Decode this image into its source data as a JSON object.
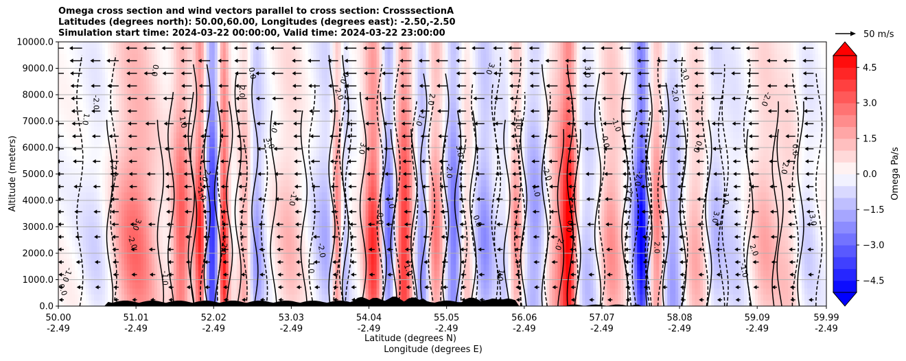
{
  "chart_data": {
    "type": "heatmap",
    "title_lines": [
      "Omega cross section and wind vectors parallel to cross section: CrosssectionA",
      "Latitudes (degrees north): 50.00,60.00, Longitudes (degrees east): -2.50,-2.50",
      "Simulation start time: 2024-03-22 00:00:00, Valid time: 2024-03-22 23:00:00"
    ],
    "ylabel": "Altitude (meters)",
    "xlabel_lat": "Latitude (degrees N)",
    "xlabel_lon": "Longitude (degrees E)",
    "ylim": [
      0,
      10000
    ],
    "xlim": [
      50.0,
      59.99
    ],
    "y_ticks": [
      "0.0",
      "1000.0",
      "2000.0",
      "3000.0",
      "4000.0",
      "5000.0",
      "6000.0",
      "7000.0",
      "8000.0",
      "9000.0",
      "10000.0"
    ],
    "y_tick_values": [
      0,
      1000,
      2000,
      3000,
      4000,
      5000,
      6000,
      7000,
      8000,
      9000,
      10000
    ],
    "x_ticks": [
      {
        "lat": "50.00",
        "lon": "-2.49",
        "v": 50.0
      },
      {
        "lat": "51.01",
        "lon": "-2.49",
        "v": 51.01
      },
      {
        "lat": "52.02",
        "lon": "-2.49",
        "v": 52.02
      },
      {
        "lat": "53.03",
        "lon": "-2.49",
        "v": 53.03
      },
      {
        "lat": "54.04",
        "lon": "-2.49",
        "v": 54.04
      },
      {
        "lat": "55.05",
        "lon": "-2.49",
        "v": 55.05
      },
      {
        "lat": "56.06",
        "lon": "-2.49",
        "v": 56.06
      },
      {
        "lat": "57.07",
        "lon": "-2.49",
        "v": 57.07
      },
      {
        "lat": "58.08",
        "lon": "-2.49",
        "v": 58.08
      },
      {
        "lat": "59.09",
        "lon": "-2.49",
        "v": 59.09
      },
      {
        "lat": "59.99",
        "lon": "-2.49",
        "v": 59.99
      }
    ],
    "grid": "horizontal",
    "colorbar": {
      "label": "Omega Pa/s",
      "range": [
        -5.0,
        5.0
      ],
      "ticks": [
        "4.5",
        "3.0",
        "1.5",
        "0.0",
        "−1.5",
        "−3.0",
        "−4.5"
      ],
      "tick_values": [
        4.5,
        3.0,
        1.5,
        0.0,
        -1.5,
        -3.0,
        -4.5
      ],
      "extend": "both"
    },
    "quiver_key": "50 m/s",
    "contour_labels": [
      "0.0",
      "1.0",
      "2.0",
      "3.0",
      "-1.0",
      "-2.0"
    ],
    "colormap": "bwr",
    "colors": {
      "positive_max": "#ff0000",
      "negative_max": "#0000ff",
      "zero": "#ffffff",
      "contour": "#000000",
      "grid": "#b0b0b0",
      "terrain": "#000000"
    }
  }
}
